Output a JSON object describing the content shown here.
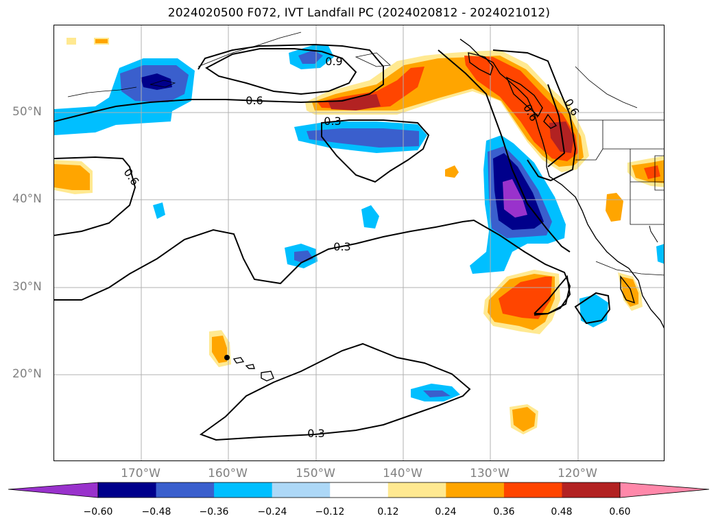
{
  "title": "2024020500 F072, IVT Landfall PC (2024020812 - 2024021012)",
  "map": {
    "projection": "PlateCarree",
    "lon_range": [
      -180,
      -110
    ],
    "lat_range": [
      10,
      60
    ],
    "gridlines": true,
    "lon_ticks": [
      "170°W",
      "160°W",
      "150°W",
      "140°W",
      "130°W",
      "120°W"
    ],
    "lat_ticks": [
      "50°N",
      "40°N",
      "30°N",
      "20°N"
    ],
    "contour_labels": [
      "0.9",
      "0.6",
      "0.3",
      "0.6",
      "0.3",
      "0.3",
      "0.6",
      "0.6"
    ]
  },
  "colorbar": {
    "tick_labels": [
      "−0.60",
      "−0.48",
      "−0.36",
      "−0.24",
      "−0.12",
      "0.12",
      "0.24",
      "0.36",
      "0.48",
      "0.60"
    ],
    "colors": [
      "#9932cc",
      "#00008b",
      "#3a5fcd",
      "#00bfff",
      "#add8f7",
      "#ffffff",
      "#ffe991",
      "#ffa500",
      "#ff4500",
      "#b22222",
      "#ff88aa"
    ]
  }
}
